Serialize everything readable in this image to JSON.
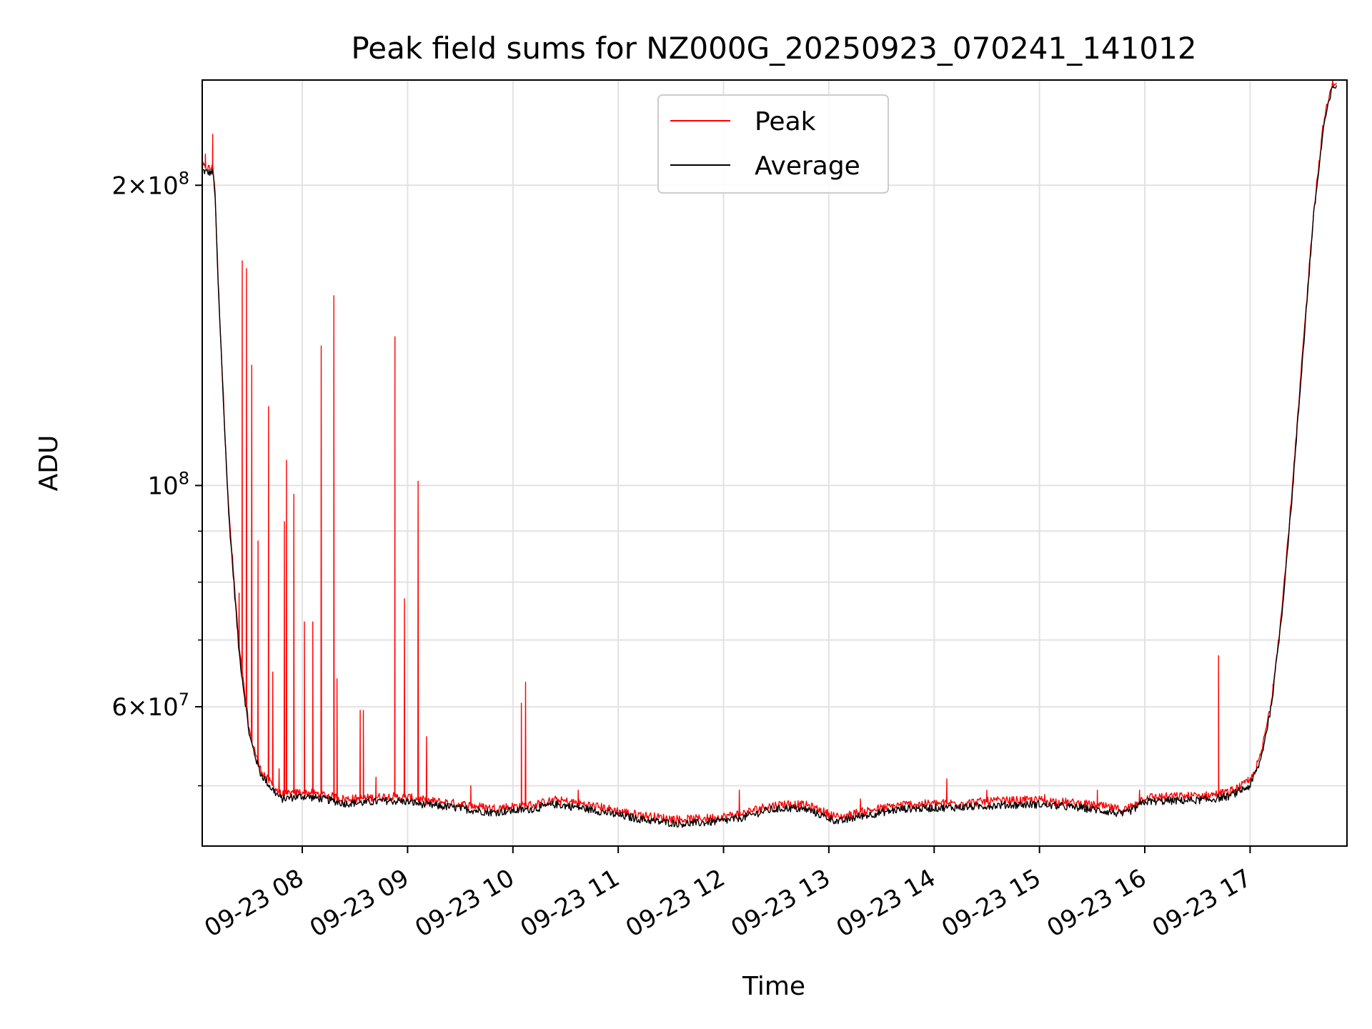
{
  "chart_data": {
    "type": "line",
    "title": "Peak field sums for NZ000G_20250923_070241_141012",
    "xlabel": "Time",
    "ylabel": "ADU",
    "yscale": "log",
    "ylim": [
      43500000,
      255000000
    ],
    "xlim": [
      7.05,
      17.92
    ],
    "grid": true,
    "legend_position": "top-center",
    "x_ticks": [
      {
        "value": 8,
        "label": "09-23 08"
      },
      {
        "value": 9,
        "label": "09-23 09"
      },
      {
        "value": 10,
        "label": "09-23 10"
      },
      {
        "value": 11,
        "label": "09-23 11"
      },
      {
        "value": 12,
        "label": "09-23 12"
      },
      {
        "value": 13,
        "label": "09-23 13"
      },
      {
        "value": 14,
        "label": "09-23 14"
      },
      {
        "value": 15,
        "label": "09-23 15"
      },
      {
        "value": 16,
        "label": "09-23 16"
      },
      {
        "value": 17,
        "label": "09-23 17"
      }
    ],
    "y_ticks": [
      {
        "value": 200000000,
        "mantissa": "2",
        "exponent": "8"
      },
      {
        "value": 100000000,
        "mantissa": "",
        "exponent": "8"
      },
      {
        "value": 60000000,
        "mantissa": "6",
        "exponent": "7"
      }
    ],
    "y_minor_ticks": [
      50000000,
      70000000,
      80000000,
      90000000
    ],
    "x_unit": "hour of day (UTC), 2025-09-23",
    "series": [
      {
        "name": "Peak",
        "color": "#ff0000",
        "spikes": [
          [
            7.08,
            215000000
          ],
          [
            7.15,
            225000000
          ],
          [
            7.4,
            78000000
          ],
          [
            7.43,
            168000000
          ],
          [
            7.47,
            165000000
          ],
          [
            7.52,
            132000000
          ],
          [
            7.58,
            88000000
          ],
          [
            7.68,
            120000000
          ],
          [
            7.72,
            65000000
          ],
          [
            7.78,
            52000000
          ],
          [
            7.83,
            92000000
          ],
          [
            7.85,
            106000000
          ],
          [
            7.92,
            98000000
          ],
          [
            8.02,
            73000000
          ],
          [
            8.1,
            73000000
          ],
          [
            8.18,
            138000000
          ],
          [
            8.3,
            155000000
          ],
          [
            8.33,
            64000000
          ],
          [
            8.55,
            59500000
          ],
          [
            8.58,
            59500000
          ],
          [
            8.7,
            51000000
          ],
          [
            8.88,
            141000000
          ],
          [
            8.97,
            77000000
          ],
          [
            9.1,
            101000000
          ],
          [
            9.18,
            56000000
          ],
          [
            9.6,
            50000000
          ],
          [
            10.08,
            60500000
          ],
          [
            10.12,
            63500000
          ],
          [
            10.62,
            49500000
          ],
          [
            12.15,
            49500000
          ],
          [
            13.3,
            48500000
          ],
          [
            14.12,
            50800000
          ],
          [
            14.5,
            49500000
          ],
          [
            15.05,
            49000000
          ],
          [
            15.55,
            49500000
          ],
          [
            15.95,
            49500000
          ],
          [
            16.7,
            67500000
          ],
          [
            16.98,
            51000000
          ],
          [
            17.22,
            63000000
          ]
        ]
      },
      {
        "name": "Average",
        "color": "#000000",
        "profile": [
          [
            7.05,
            207000000
          ],
          [
            7.1,
            206000000
          ],
          [
            7.15,
            206000000
          ],
          [
            7.17,
            198000000
          ],
          [
            7.2,
            160000000
          ],
          [
            7.25,
            122000000
          ],
          [
            7.3,
            94000000
          ],
          [
            7.35,
            80000000
          ],
          [
            7.4,
            68000000
          ],
          [
            7.5,
            56000000
          ],
          [
            7.6,
            51500000
          ],
          [
            7.7,
            49800000
          ],
          [
            7.8,
            48500000
          ],
          [
            8.0,
            48800000
          ],
          [
            8.2,
            48500000
          ],
          [
            8.4,
            48000000
          ],
          [
            8.6,
            48100000
          ],
          [
            8.8,
            48300000
          ],
          [
            9.0,
            48200000
          ],
          [
            9.2,
            47800000
          ],
          [
            9.4,
            47600000
          ],
          [
            9.6,
            47300000
          ],
          [
            9.8,
            47000000
          ],
          [
            10.0,
            47200000
          ],
          [
            10.2,
            47400000
          ],
          [
            10.4,
            47900000
          ],
          [
            10.6,
            47600000
          ],
          [
            10.8,
            47200000
          ],
          [
            11.0,
            46700000
          ],
          [
            11.2,
            46300000
          ],
          [
            11.4,
            46000000
          ],
          [
            11.6,
            45800000
          ],
          [
            11.8,
            45900000
          ],
          [
            12.0,
            46100000
          ],
          [
            12.2,
            46500000
          ],
          [
            12.4,
            47200000
          ],
          [
            12.6,
            47500000
          ],
          [
            12.8,
            47300000
          ],
          [
            13.0,
            46400000
          ],
          [
            13.1,
            46000000
          ],
          [
            13.3,
            46600000
          ],
          [
            13.5,
            47000000
          ],
          [
            13.7,
            47400000
          ],
          [
            14.0,
            47500000
          ],
          [
            14.3,
            47600000
          ],
          [
            14.6,
            47800000
          ],
          [
            15.0,
            47900000
          ],
          [
            15.2,
            47700000
          ],
          [
            15.4,
            47500000
          ],
          [
            15.6,
            47200000
          ],
          [
            15.8,
            46800000
          ],
          [
            15.9,
            47400000
          ],
          [
            16.0,
            48200000
          ],
          [
            16.3,
            48300000
          ],
          [
            16.6,
            48400000
          ],
          [
            16.8,
            48800000
          ],
          [
            17.0,
            50000000
          ],
          [
            17.1,
            53000000
          ],
          [
            17.2,
            60000000
          ],
          [
            17.3,
            74000000
          ],
          [
            17.4,
            98000000
          ],
          [
            17.5,
            135000000
          ],
          [
            17.6,
            185000000
          ],
          [
            17.7,
            230000000
          ],
          [
            17.78,
            250000000
          ],
          [
            17.82,
            252000000
          ]
        ]
      }
    ]
  }
}
